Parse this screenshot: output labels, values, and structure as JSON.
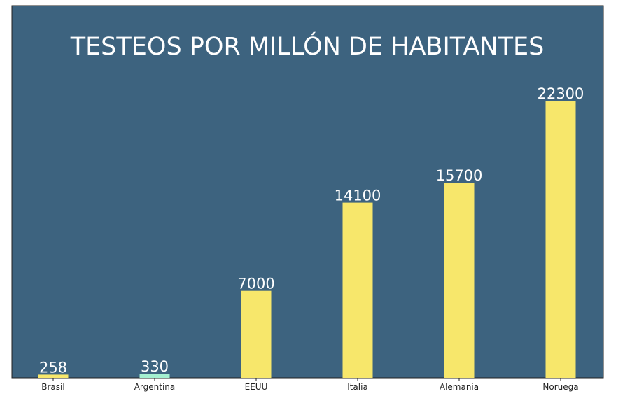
{
  "chart_data": {
    "type": "bar",
    "title": "TESTEOS POR MILLÓN DE HABITANTES",
    "xlabel": "",
    "ylabel": "",
    "categories": [
      "Brasil",
      "Argentina",
      "EEUU",
      "Italia",
      "Alemania",
      "Noruega"
    ],
    "values": [
      258,
      330,
      7000,
      14100,
      15700,
      22300
    ],
    "value_labels": [
      "258",
      "330",
      "7000",
      "14100",
      "15700",
      "22300"
    ],
    "bar_colors": [
      "#f7e76b",
      "#a4f0d0",
      "#f7e76b",
      "#f7e76b",
      "#f7e76b",
      "#f7e76b"
    ],
    "background_color": "#3d637f",
    "ylim": [
      0,
      24000
    ],
    "grid": false,
    "legend": "none"
  }
}
